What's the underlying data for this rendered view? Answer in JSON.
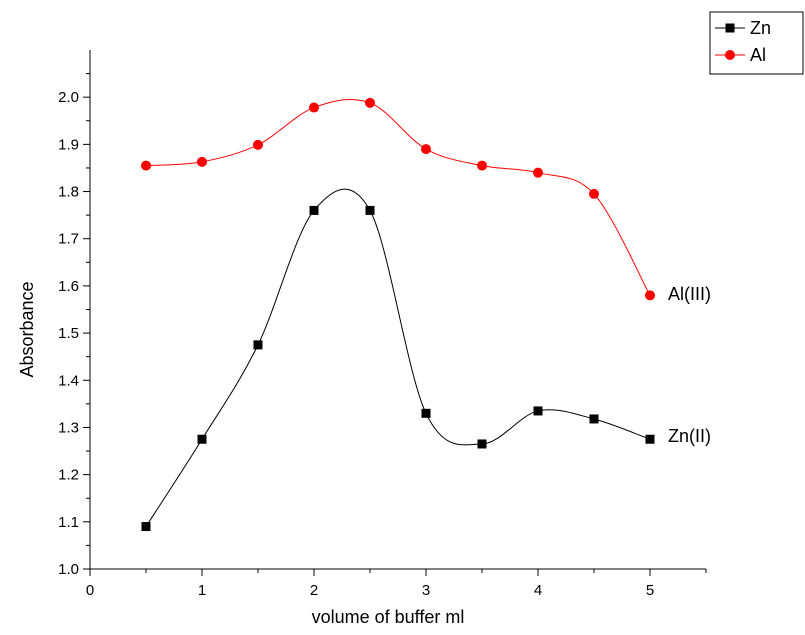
{
  "chart_data": {
    "type": "line",
    "title": "",
    "xlabel": "volume of buffer ml",
    "ylabel": "Absorbance",
    "xlim": [
      0,
      5.5
    ],
    "ylim": [
      1.0,
      2.1
    ],
    "x_ticks": [
      "0",
      "1",
      "2",
      "3",
      "4",
      "5"
    ],
    "y_ticks": [
      "1.0",
      "1.1",
      "1.2",
      "1.3",
      "1.4",
      "1.5",
      "1.6",
      "1.7",
      "1.8",
      "1.9",
      "2.0"
    ],
    "grid": false,
    "legend_position": "top-right",
    "series": [
      {
        "name": "Zn",
        "color": "#000000",
        "marker": "square",
        "annotation": "Zn(II)",
        "x": [
          0.5,
          1.0,
          1.5,
          2.0,
          2.5,
          3.0,
          3.5,
          4.0,
          4.5,
          5.0
        ],
        "y": [
          1.09,
          1.275,
          1.475,
          1.76,
          1.76,
          1.33,
          1.265,
          1.335,
          1.318,
          1.275
        ]
      },
      {
        "name": "Al",
        "color": "#ff0000",
        "marker": "circle",
        "annotation": "Al(III)",
        "x": [
          0.5,
          1.0,
          1.5,
          2.0,
          2.5,
          3.0,
          3.5,
          4.0,
          4.5,
          5.0
        ],
        "y": [
          1.855,
          1.863,
          1.899,
          1.978,
          1.988,
          1.89,
          1.855,
          1.84,
          1.795,
          1.58
        ]
      }
    ]
  }
}
